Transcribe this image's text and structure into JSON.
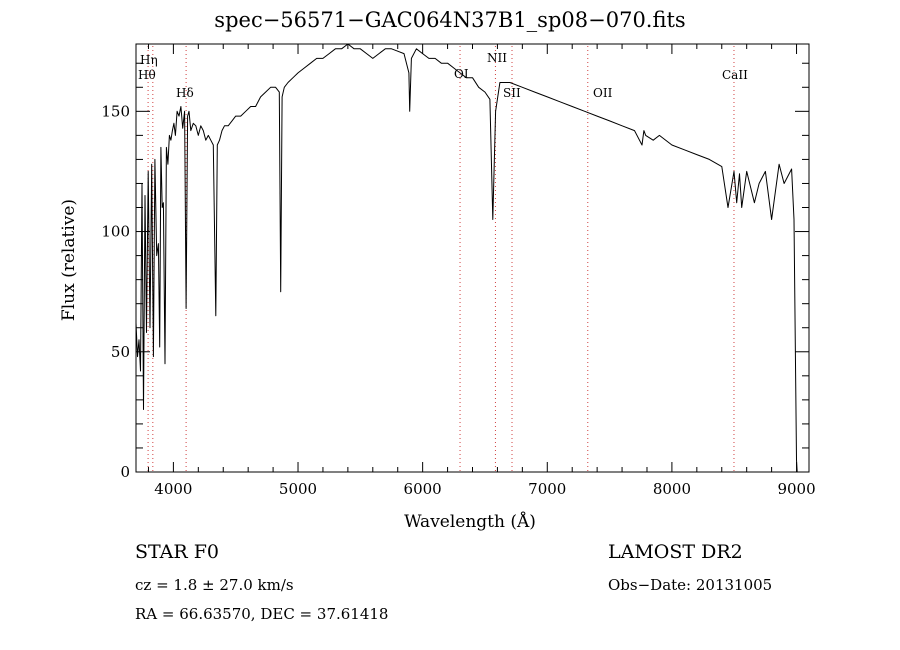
{
  "chart_data": {
    "type": "line",
    "title": "spec−56571−GAC064N37B1_sp08−070.fits",
    "xlabel": "Wavelength (Å)",
    "ylabel": "Flux (relative)",
    "xlim": [
      3700,
      9100
    ],
    "ylim": [
      0,
      178
    ],
    "x_ticks": [
      4000,
      5000,
      6000,
      7000,
      8000,
      9000
    ],
    "x_ticklabels": [
      "4000",
      "5000",
      "6000",
      "7000",
      "8000",
      "9000"
    ],
    "y_ticks": [
      0,
      50,
      100,
      150
    ],
    "y_ticklabels": [
      "0",
      "50",
      "100",
      "150"
    ],
    "grid": false,
    "series": [
      {
        "color": "#000000",
        "x": [
          3700,
          3712,
          3724,
          3736,
          3748,
          3760,
          3772,
          3784,
          3798,
          3812,
          3826,
          3840,
          3852,
          3866,
          3880,
          3890,
          3900,
          3910,
          3920,
          3933,
          3944,
          3956,
          3968,
          3980,
          3992,
          4004,
          4016,
          4030,
          4045,
          4060,
          4075,
          4090,
          4102,
          4114,
          4125,
          4140,
          4160,
          4180,
          4200,
          4220,
          4240,
          4260,
          4280,
          4300,
          4320,
          4340,
          4352,
          4370,
          4390,
          4410,
          4440,
          4470,
          4500,
          4540,
          4580,
          4620,
          4660,
          4700,
          4740,
          4780,
          4820,
          4850,
          4861,
          4872,
          4890,
          4920,
          4960,
          5000,
          5050,
          5100,
          5150,
          5200,
          5250,
          5300,
          5350,
          5400,
          5450,
          5500,
          5550,
          5600,
          5650,
          5700,
          5750,
          5800,
          5850,
          5890,
          5896,
          5910,
          5950,
          6000,
          6050,
          6100,
          6150,
          6200,
          6250,
          6300,
          6350,
          6400,
          6450,
          6500,
          6540,
          6563,
          6585,
          6620,
          6700,
          6800,
          6900,
          7000,
          7100,
          7200,
          7300,
          7400,
          7500,
          7600,
          7700,
          7760,
          7775,
          7790,
          7850,
          7900,
          8000,
          8100,
          8200,
          8300,
          8400,
          8450,
          8498,
          8520,
          8542,
          8560,
          8600,
          8662,
          8700,
          8750,
          8800,
          8860,
          8900,
          8960,
          8980,
          9000,
          9005
        ],
        "y": [
          62,
          48,
          55,
          42,
          120,
          26,
          115,
          58,
          125,
          60,
          128,
          48,
          130,
          90,
          95,
          52,
          135,
          110,
          112,
          45,
          135,
          128,
          140,
          138,
          142,
          145,
          140,
          150,
          148,
          152,
          143,
          150,
          68,
          148,
          150,
          142,
          145,
          144,
          140,
          144,
          142,
          138,
          140,
          138,
          136,
          65,
          136,
          138,
          142,
          144,
          144,
          146,
          148,
          148,
          150,
          152,
          152,
          156,
          158,
          160,
          160,
          158,
          75,
          156,
          160,
          162,
          164,
          166,
          168,
          170,
          172,
          172,
          174,
          176,
          176,
          178,
          176,
          176,
          174,
          172,
          174,
          176,
          176,
          175,
          174,
          166,
          150,
          172,
          176,
          174,
          172,
          172,
          170,
          170,
          168,
          166,
          164,
          164,
          160,
          158,
          155,
          105,
          150,
          162,
          162,
          160,
          158,
          156,
          154,
          152,
          150,
          148,
          146,
          144,
          142,
          136,
          142,
          140,
          138,
          140,
          136,
          134,
          132,
          130,
          127,
          110,
          125,
          112,
          124,
          110,
          125,
          112,
          120,
          125,
          105,
          128,
          120,
          126,
          105,
          5,
          0
        ]
      }
    ],
    "lines": [
      {
        "label": "Hη",
        "x": 3835
      },
      {
        "label": "Hθ",
        "x": 3797
      },
      {
        "label": "Hδ",
        "x": 4102
      },
      {
        "label": "OI",
        "x": 6300
      },
      {
        "label": "NII",
        "x": 6584
      },
      {
        "label": "SII",
        "x": 6717
      },
      {
        "label": "OII",
        "x": 7325
      },
      {
        "label": "CaII",
        "x": 8498
      }
    ]
  },
  "info": {
    "object": "STAR    F0",
    "cz": "cz = 1.8 ± 27.0 km/s",
    "radec": "RA =  66.63570, DEC =  37.61418",
    "survey": "LAMOST DR2",
    "obsdate": "Obs−Date: 20131005"
  }
}
